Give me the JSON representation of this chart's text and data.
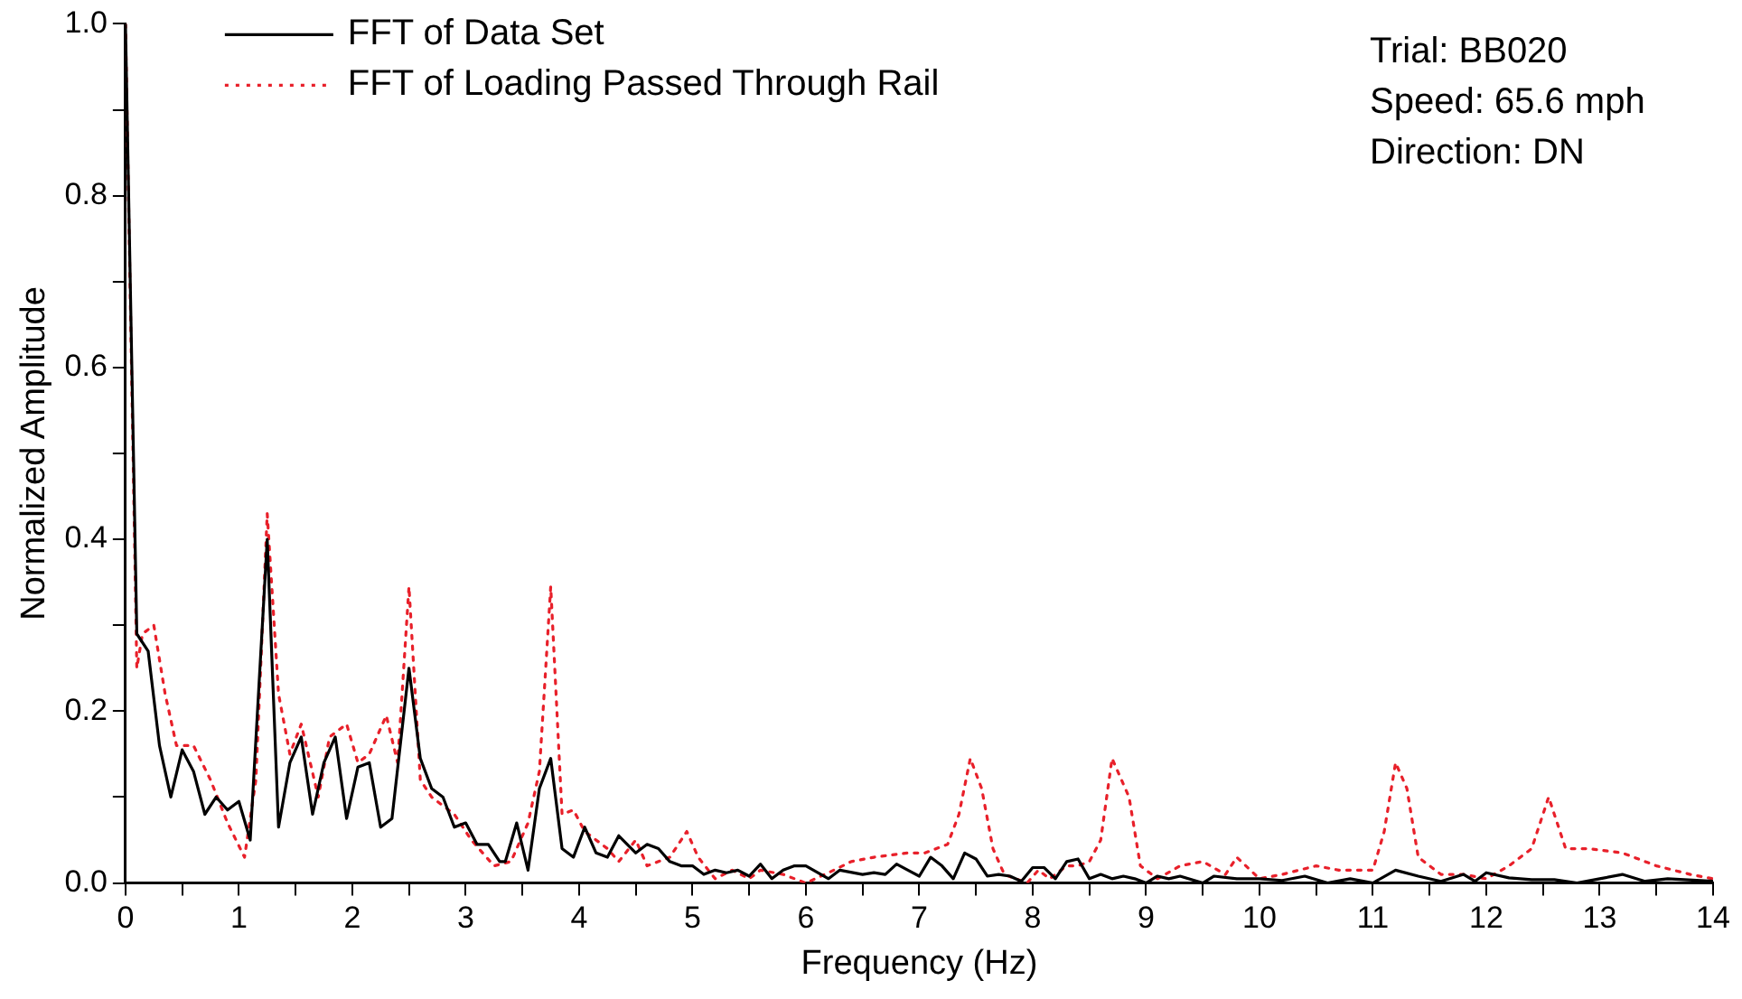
{
  "chart_data": {
    "type": "line",
    "xlabel": "Frequency (Hz)",
    "ylabel": "Normalized Amplitude",
    "xlim": [
      0,
      14
    ],
    "xticks": [
      0,
      {
        "value": 0.5,
        "label": null
      },
      1,
      {
        "value": 1.5,
        "label": null
      },
      2,
      {
        "value": 2.5,
        "label": null
      },
      3,
      {
        "value": 3.5,
        "label": null
      },
      4,
      {
        "value": 4.5,
        "label": null
      },
      5,
      {
        "value": 5.5,
        "label": null
      },
      6,
      {
        "value": 6.5,
        "label": null
      },
      7,
      {
        "value": 7.5,
        "label": null
      },
      8,
      {
        "value": 8.5,
        "label": null
      },
      9,
      {
        "value": 9.5,
        "label": null
      },
      10,
      {
        "value": 10.5,
        "label": null
      },
      11,
      {
        "value": 11.5,
        "label": null
      },
      12,
      {
        "value": 12.5,
        "label": null
      },
      13,
      {
        "value": 13.5,
        "label": null
      },
      14
    ],
    "ylim": [
      0,
      1
    ],
    "yticks": [
      {
        "value": 0,
        "label": "0.0"
      },
      {
        "value": 0.1,
        "label": null
      },
      0.2,
      {
        "value": 0.3,
        "label": null
      },
      0.4,
      {
        "value": 0.5,
        "label": null
      },
      0.6,
      {
        "value": 0.7,
        "label": null
      },
      0.8,
      {
        "value": 0.9,
        "label": null
      },
      {
        "value": 1,
        "label": "1.0"
      }
    ],
    "grid": false,
    "legend": "top left",
    "marker": "none",
    "annotations": [
      "Trial: BB020",
      "Speed: 65.6 mph",
      "Direction: DN"
    ],
    "series": [
      {
        "name": "FFT of Data Set",
        "color": "#000000",
        "line_style": "solid",
        "x": [
          0,
          0.1,
          0.2,
          0.3,
          0.4,
          0.5,
          0.6,
          0.7,
          0.8,
          0.9,
          1.0,
          1.1,
          1.25,
          1.35,
          1.45,
          1.55,
          1.65,
          1.75,
          1.85,
          1.95,
          2.05,
          2.15,
          2.25,
          2.35,
          2.5,
          2.6,
          2.7,
          2.8,
          2.9,
          3.0,
          3.1,
          3.2,
          3.3,
          3.35,
          3.45,
          3.55,
          3.65,
          3.75,
          3.85,
          3.95,
          4.05,
          4.15,
          4.25,
          4.35,
          4.5,
          4.6,
          4.7,
          4.8,
          4.9,
          5.0,
          5.1,
          5.2,
          5.3,
          5.4,
          5.5,
          5.6,
          5.7,
          5.8,
          5.9,
          6.0,
          6.2,
          6.3,
          6.5,
          6.6,
          6.7,
          6.8,
          6.9,
          7.0,
          7.1,
          7.2,
          7.3,
          7.4,
          7.5,
          7.6,
          7.7,
          7.8,
          7.9,
          8.0,
          8.1,
          8.2,
          8.3,
          8.4,
          8.5,
          8.6,
          8.7,
          8.8,
          8.9,
          9.0,
          9.1,
          9.2,
          9.3,
          9.5,
          9.6,
          9.8,
          10.0,
          10.2,
          10.4,
          10.6,
          10.8,
          11.0,
          11.2,
          11.4,
          11.6,
          11.8,
          11.9,
          12.0,
          12.2,
          12.4,
          12.6,
          12.8,
          13.0,
          13.2,
          13.4,
          13.6,
          14.0
        ],
        "values": [
          1.0,
          0.29,
          0.27,
          0.16,
          0.1,
          0.155,
          0.13,
          0.08,
          0.1,
          0.085,
          0.095,
          0.05,
          0.4,
          0.065,
          0.14,
          0.17,
          0.08,
          0.14,
          0.17,
          0.075,
          0.135,
          0.14,
          0.065,
          0.075,
          0.25,
          0.145,
          0.11,
          0.1,
          0.065,
          0.07,
          0.045,
          0.045,
          0.025,
          0.025,
          0.07,
          0.015,
          0.11,
          0.145,
          0.04,
          0.03,
          0.065,
          0.035,
          0.03,
          0.055,
          0.035,
          0.045,
          0.04,
          0.025,
          0.02,
          0.02,
          0.01,
          0.015,
          0.012,
          0.015,
          0.008,
          0.022,
          0.005,
          0.015,
          0.02,
          0.02,
          0.005,
          0.015,
          0.01,
          0.012,
          0.01,
          0.022,
          0.015,
          0.008,
          0.03,
          0.02,
          0.005,
          0.035,
          0.028,
          0.008,
          0.01,
          0.008,
          0.002,
          0.018,
          0.018,
          0.005,
          0.025,
          0.028,
          0.005,
          0.01,
          0.005,
          0.008,
          0.005,
          0.0,
          0.008,
          0.005,
          0.008,
          0.0,
          0.008,
          0.005,
          0.005,
          0.003,
          0.008,
          0.0,
          0.005,
          0.0,
          0.015,
          0.008,
          0.002,
          0.01,
          0.002,
          0.012,
          0.006,
          0.004,
          0.004,
          0.0,
          0.005,
          0.01,
          0.002,
          0.005,
          0.002
        ]
      },
      {
        "name": "FFT of Loading Passed Through Rail",
        "color": "#e8202a",
        "line_style": "dotted",
        "x": [
          0,
          0.1,
          0.15,
          0.25,
          0.35,
          0.45,
          0.6,
          0.75,
          0.9,
          1.05,
          1.15,
          1.25,
          1.35,
          1.45,
          1.55,
          1.7,
          1.8,
          1.95,
          2.05,
          2.15,
          2.3,
          2.4,
          2.5,
          2.6,
          2.7,
          2.8,
          2.9,
          3.05,
          3.25,
          3.4,
          3.55,
          3.65,
          3.75,
          3.85,
          3.95,
          4.05,
          4.25,
          4.35,
          4.5,
          4.6,
          4.8,
          4.95,
          5.05,
          5.2,
          5.35,
          5.5,
          5.6,
          5.8,
          6.0,
          6.2,
          6.4,
          6.6,
          6.9,
          7.05,
          7.25,
          7.35,
          7.45,
          7.55,
          7.65,
          7.75,
          7.95,
          8.05,
          8.15,
          8.3,
          8.4,
          8.5,
          8.6,
          8.7,
          8.85,
          8.95,
          9.1,
          9.3,
          9.5,
          9.7,
          9.8,
          10.0,
          10.2,
          10.5,
          10.7,
          11.0,
          11.1,
          11.2,
          11.3,
          11.4,
          11.6,
          11.8,
          12.0,
          12.2,
          12.4,
          12.55,
          12.7,
          12.9,
          13.2,
          13.5,
          13.8,
          14.0
        ],
        "values": [
          1.0,
          0.25,
          0.29,
          0.3,
          0.22,
          0.16,
          0.16,
          0.12,
          0.07,
          0.03,
          0.12,
          0.43,
          0.22,
          0.15,
          0.185,
          0.1,
          0.17,
          0.185,
          0.14,
          0.15,
          0.195,
          0.14,
          0.345,
          0.12,
          0.1,
          0.09,
          0.08,
          0.05,
          0.02,
          0.025,
          0.07,
          0.13,
          0.345,
          0.08,
          0.085,
          0.06,
          0.04,
          0.025,
          0.05,
          0.02,
          0.03,
          0.06,
          0.03,
          0.005,
          0.015,
          0.005,
          0.015,
          0.01,
          0.0,
          0.012,
          0.025,
          0.03,
          0.035,
          0.035,
          0.045,
          0.08,
          0.145,
          0.11,
          0.04,
          0.01,
          0.0,
          0.015,
          0.005,
          0.02,
          0.02,
          0.025,
          0.05,
          0.145,
          0.1,
          0.02,
          0.005,
          0.02,
          0.025,
          0.01,
          0.03,
          0.005,
          0.01,
          0.02,
          0.015,
          0.015,
          0.06,
          0.14,
          0.11,
          0.03,
          0.01,
          0.01,
          0.005,
          0.02,
          0.04,
          0.1,
          0.04,
          0.04,
          0.035,
          0.02,
          0.01,
          0.005
        ]
      }
    ]
  }
}
